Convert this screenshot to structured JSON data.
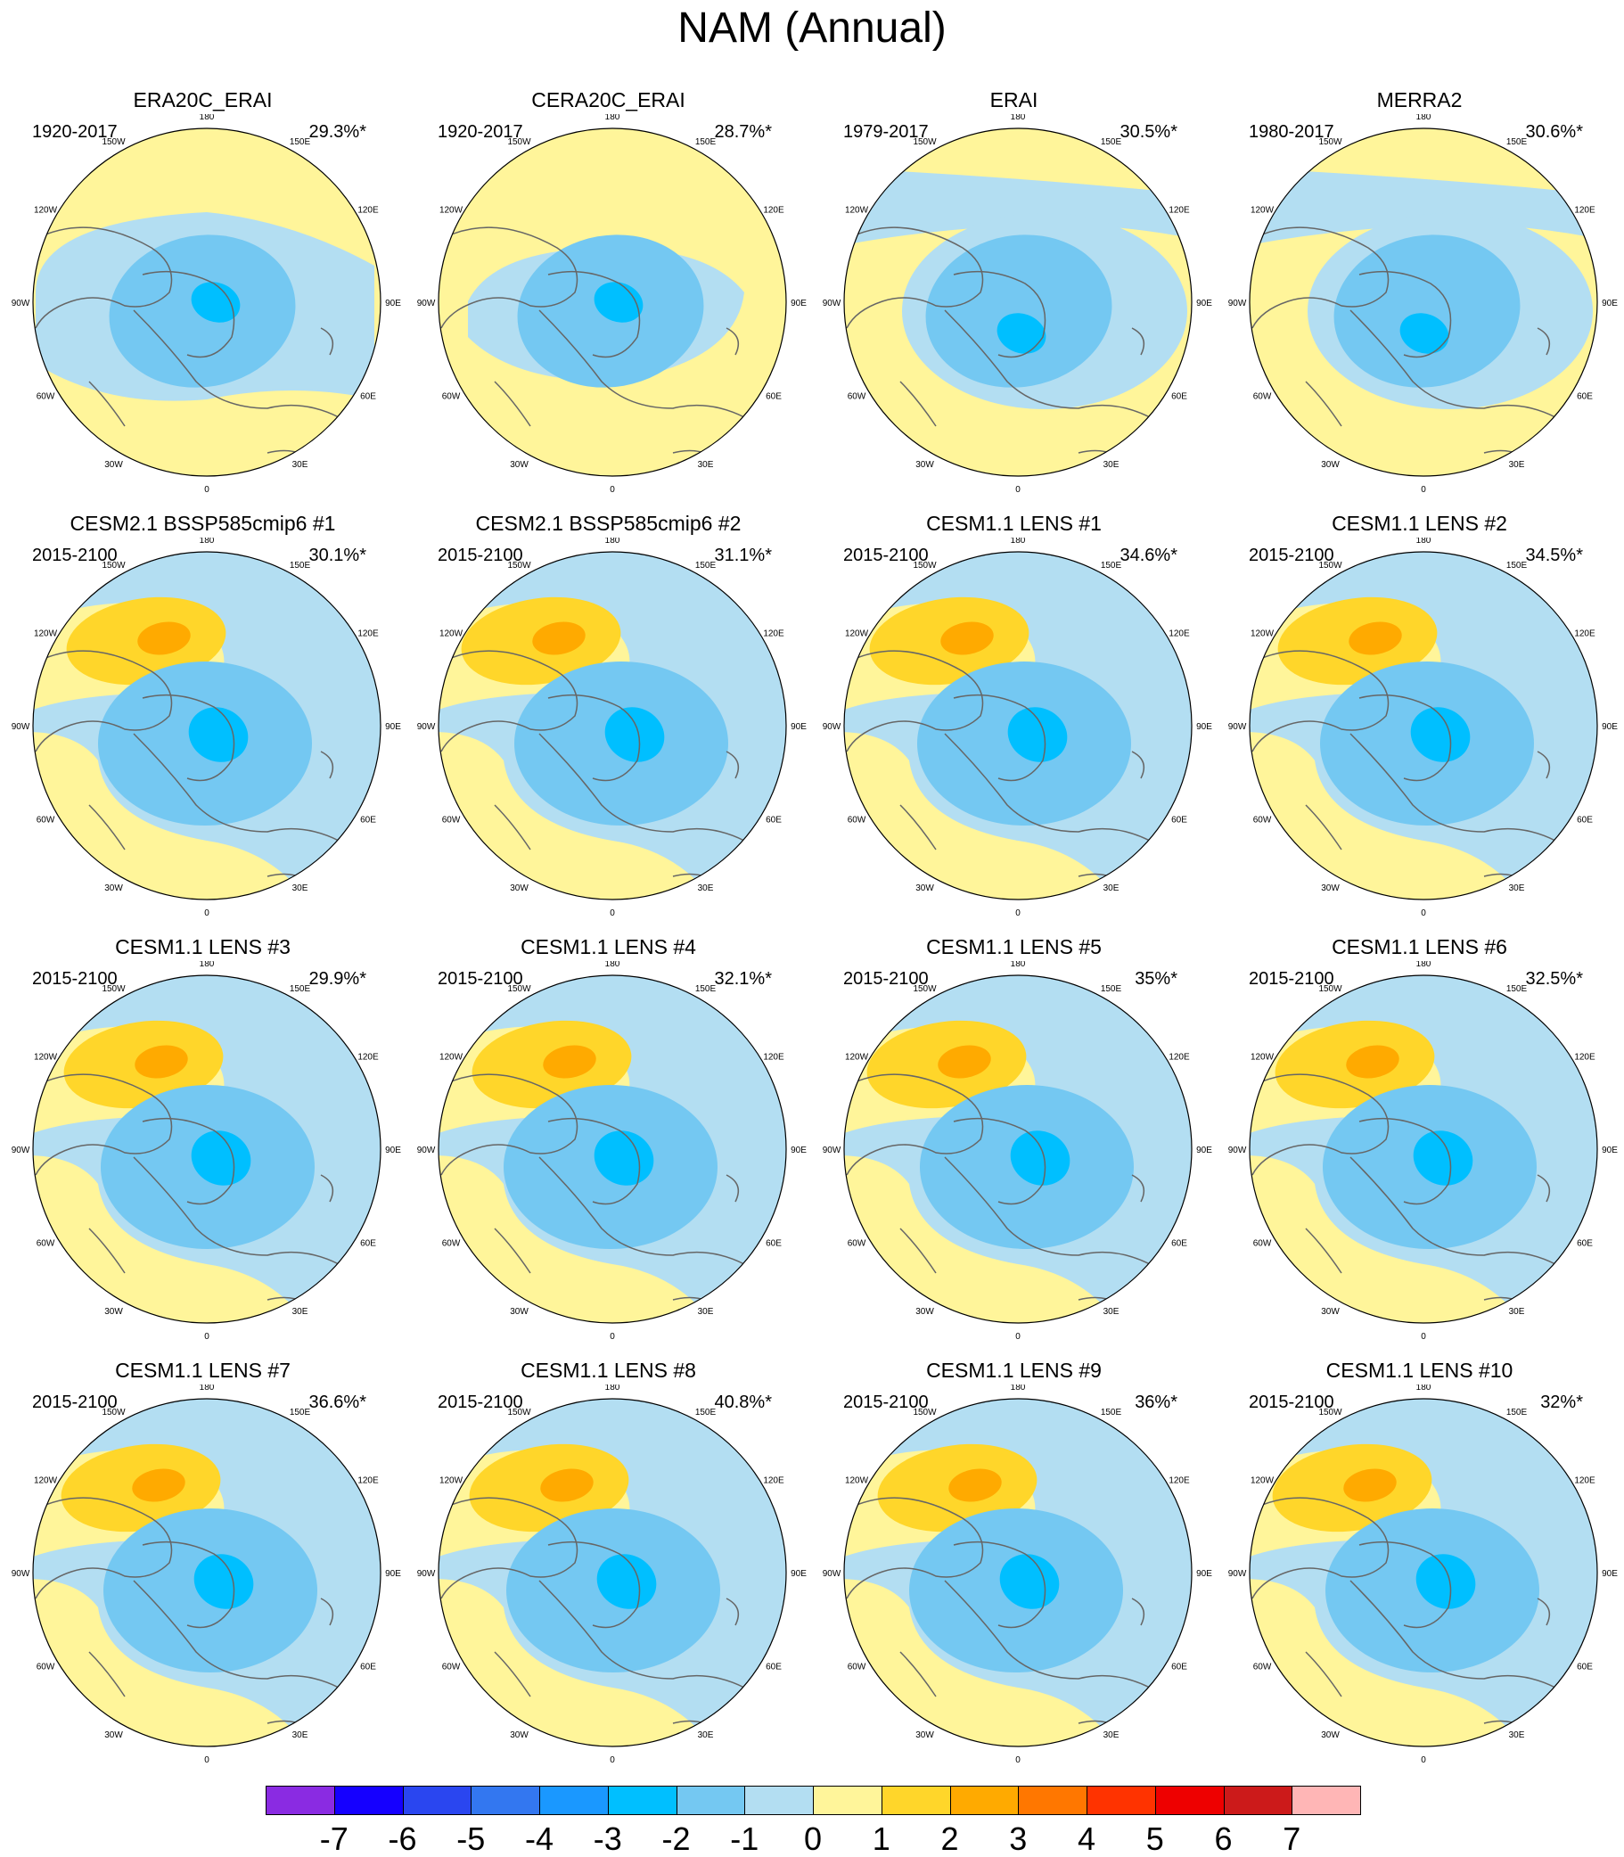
{
  "title": "NAM (Annual)",
  "colors": {
    "m1": "#b3def2",
    "m2": "#74c8f2",
    "m3": "#00bfff",
    "m4": "#1a98ff",
    "p1": "#fff59a",
    "p2": "#ffd62a",
    "p3": "#ffaa00",
    "coast": "#666666"
  },
  "lon_labels": [
    "180",
    "150E",
    "120E",
    "90E",
    "60E",
    "30E",
    "0",
    "30W",
    "60W",
    "90W",
    "120W",
    "150W"
  ],
  "panels": [
    {
      "title": "ERA20C_ERAI",
      "period": "1920-2017",
      "pct": "29.3%*",
      "pattern": "obs",
      "n": 0
    },
    {
      "title": "CERA20C_ERAI",
      "period": "1920-2017",
      "pct": "28.7%*",
      "pattern": "obs",
      "n": 1
    },
    {
      "title": "ERAI",
      "period": "1979-2017",
      "pct": "30.5%*",
      "pattern": "obs",
      "n": 2
    },
    {
      "title": "MERRA2",
      "period": "1980-2017",
      "pct": "30.6%*",
      "pattern": "obs",
      "n": 3
    },
    {
      "title": "CESM2.1 BSSP585cmip6 #1",
      "period": "2015-2100",
      "pct": "30.1%*",
      "pattern": "model",
      "n": 4
    },
    {
      "title": "CESM2.1 BSSP585cmip6 #2",
      "period": "2015-2100",
      "pct": "31.1%*",
      "pattern": "model",
      "n": 5
    },
    {
      "title": "CESM1.1 LENS #1",
      "period": "2015-2100",
      "pct": "34.6%*",
      "pattern": "model",
      "n": 6
    },
    {
      "title": "CESM1.1 LENS #2",
      "period": "2015-2100",
      "pct": "34.5%*",
      "pattern": "model",
      "n": 7
    },
    {
      "title": "CESM1.1 LENS #3",
      "period": "2015-2100",
      "pct": "29.9%*",
      "pattern": "model",
      "n": 8
    },
    {
      "title": "CESM1.1 LENS #4",
      "period": "2015-2100",
      "pct": "32.1%*",
      "pattern": "model",
      "n": 9
    },
    {
      "title": "CESM1.1 LENS #5",
      "period": "2015-2100",
      "pct": "35%*",
      "pattern": "model",
      "n": 10
    },
    {
      "title": "CESM1.1 LENS #6",
      "period": "2015-2100",
      "pct": "32.5%*",
      "pattern": "model",
      "n": 11
    },
    {
      "title": "CESM1.1 LENS #7",
      "period": "2015-2100",
      "pct": "36.6%*",
      "pattern": "model",
      "n": 12
    },
    {
      "title": "CESM1.1 LENS #8",
      "period": "2015-2100",
      "pct": "40.8%*",
      "pattern": "model",
      "n": 13
    },
    {
      "title": "CESM1.1 LENS #9",
      "period": "2015-2100",
      "pct": "36%*",
      "pattern": "model",
      "n": 14
    },
    {
      "title": "CESM1.1 LENS #10",
      "period": "2015-2100",
      "pct": "32%*",
      "pattern": "model",
      "n": 15
    }
  ],
  "colorbar": {
    "colors": [
      "#8a2be2",
      "#1500ff",
      "#2a46f0",
      "#3377f0",
      "#1a98ff",
      "#00bfff",
      "#74c8f2",
      "#b3def2",
      "#fff59a",
      "#ffd62a",
      "#ffaa00",
      "#ff7700",
      "#ff3300",
      "#ee0000",
      "#cc1a1a",
      "#ffb6b6"
    ],
    "labels": [
      "-7",
      "-6",
      "-5",
      "-4",
      "-3",
      "-2",
      "-1",
      "0",
      "1",
      "2",
      "3",
      "4",
      "5",
      "6",
      "7"
    ]
  }
}
